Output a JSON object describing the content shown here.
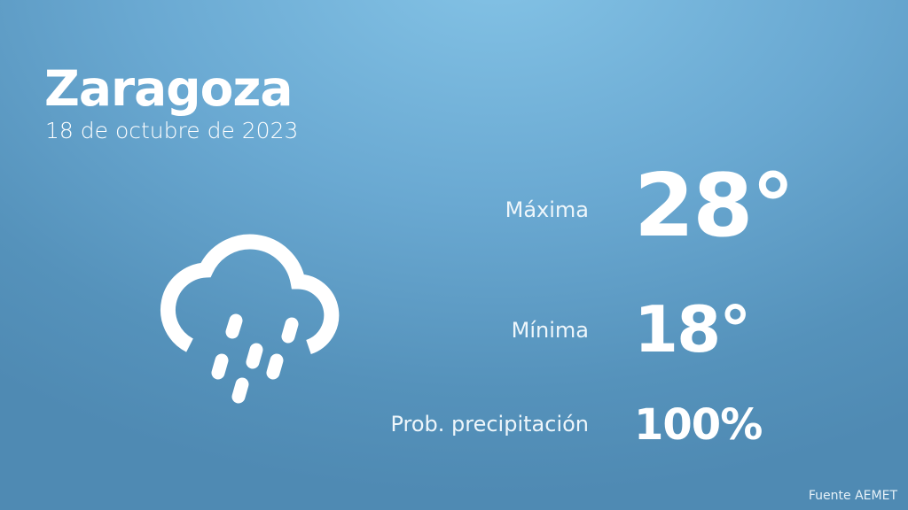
{
  "city": "Zaragoza",
  "date": "18 de octubre de 2023",
  "weather_icon": "cloud-rain-icon",
  "rows": [
    {
      "label": "Máxima",
      "value": "28°"
    },
    {
      "label": "Mínima",
      "value": "18°"
    },
    {
      "label": "Prob. precipitación",
      "value": "100%"
    }
  ],
  "source": "Fuente AEMET",
  "colors": {
    "background_top": "#84c3e6",
    "background_bottom": "#4f8ab3",
    "text": "#ffffff"
  }
}
